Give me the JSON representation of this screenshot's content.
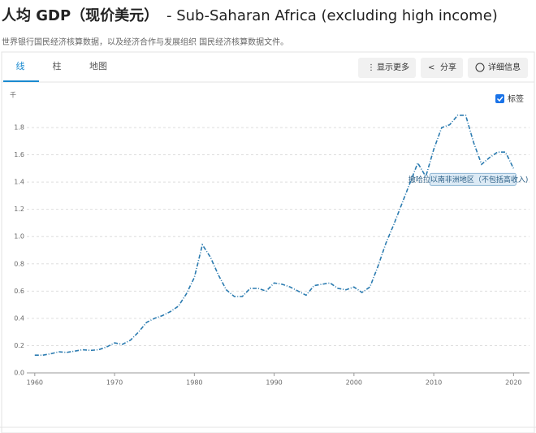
{
  "header": {
    "title": "人均 GDP（现价美元）",
    "title_suffix": "- Sub-Saharan Africa (excluding high income)",
    "subtitle": "世界银行国民经济核算数据，以及经济合作与发展组织 国民经济核算数据文件。"
  },
  "tabs": [
    "线",
    "柱",
    "地图"
  ],
  "buttons": [
    "显示更多",
    "分享",
    "详细信息"
  ],
  "controls": {
    "label_toggle": "标签"
  },
  "chart_data": {
    "type": "line",
    "y_unit": "千",
    "x": [
      1960,
      1961,
      1962,
      1963,
      1964,
      1965,
      1966,
      1967,
      1968,
      1969,
      1970,
      1971,
      1972,
      1973,
      1974,
      1975,
      1976,
      1977,
      1978,
      1979,
      1980,
      1981,
      1982,
      1983,
      1984,
      1985,
      1986,
      1987,
      1988,
      1989,
      1990,
      1991,
      1992,
      1993,
      1994,
      1995,
      1996,
      1997,
      1998,
      1999,
      2000,
      2001,
      2002,
      2003,
      2004,
      2005,
      2006,
      2007,
      2008,
      2009,
      2010,
      2011,
      2012,
      2013,
      2014,
      2015,
      2016,
      2017,
      2018,
      2019,
      2020
    ],
    "series": [
      {
        "name": "撒哈拉以南非洲地区（不包括高收入)",
        "color": "#2b7bb0",
        "values": [
          0.13,
          0.13,
          0.14,
          0.155,
          0.15,
          0.16,
          0.17,
          0.165,
          0.17,
          0.19,
          0.22,
          0.21,
          0.24,
          0.3,
          0.37,
          0.4,
          0.42,
          0.45,
          0.49,
          0.58,
          0.7,
          0.94,
          0.85,
          0.72,
          0.61,
          0.56,
          0.56,
          0.62,
          0.62,
          0.6,
          0.66,
          0.65,
          0.63,
          0.6,
          0.57,
          0.64,
          0.65,
          0.66,
          0.62,
          0.61,
          0.63,
          0.59,
          0.63,
          0.78,
          0.95,
          1.09,
          1.24,
          1.39,
          1.54,
          1.44,
          1.64,
          1.8,
          1.82,
          1.89,
          1.89,
          1.69,
          1.53,
          1.58,
          1.62,
          1.62,
          1.5
        ]
      }
    ],
    "xlim": [
      1959,
      2022
    ],
    "ylim": [
      0,
      1.8
    ],
    "xticks": [
      1960,
      1970,
      1980,
      1990,
      2000,
      2010,
      2020
    ],
    "yticks": [
      {
        "value": 0,
        "label": "0.0"
      },
      0.2,
      0.4,
      0.6,
      0.8,
      {
        "value": 1,
        "label": "1.0"
      },
      1.2,
      1.4,
      1.6,
      1.8
    ],
    "grid": true
  }
}
